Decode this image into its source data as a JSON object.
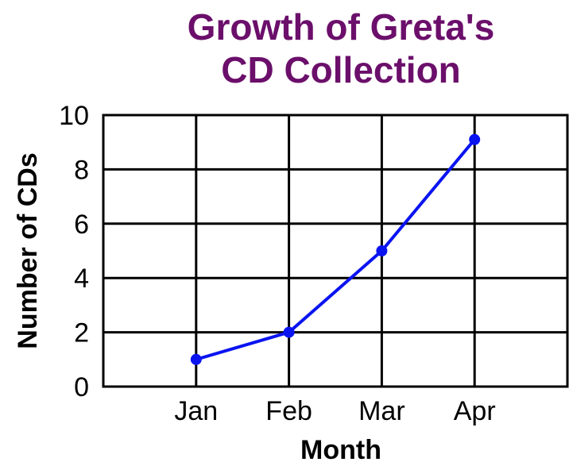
{
  "chart_data": {
    "type": "line",
    "title_lines": [
      "Growth of Greta's",
      "CD Collection"
    ],
    "xlabel": "Month",
    "ylabel": "Number of CDs",
    "categories": [
      "Jan",
      "Feb",
      "Mar",
      "Apr"
    ],
    "series": [
      {
        "values": [
          1,
          2,
          5,
          9.1
        ]
      }
    ],
    "ylim": [
      0,
      10
    ],
    "yticks": [
      0,
      2,
      4,
      6,
      8,
      10
    ],
    "grid": true,
    "legend": "none"
  },
  "colors": {
    "title": "#6b0f6b",
    "line": "#0a14f0",
    "grid": "#000000",
    "text": "#000000"
  }
}
